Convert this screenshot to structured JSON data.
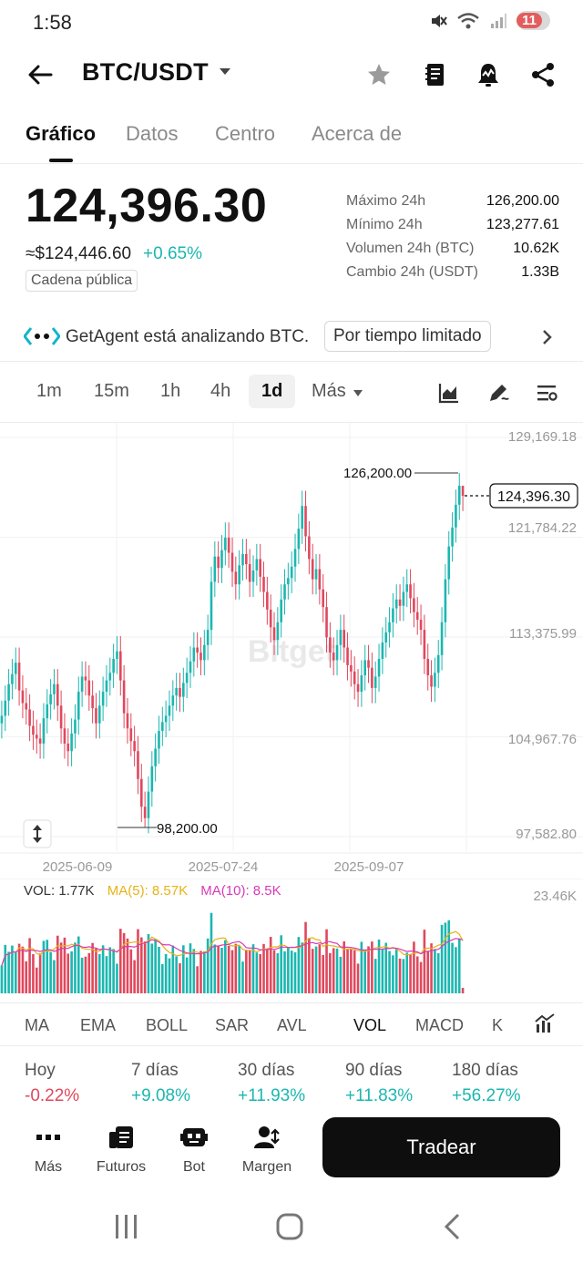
{
  "status_bar": {
    "time": "1:58",
    "battery": "11"
  },
  "header": {
    "pair": "BTC/USDT"
  },
  "tabs": [
    {
      "label": "Gráfico"
    },
    {
      "label": "Datos"
    },
    {
      "label": "Centro"
    },
    {
      "label": "Acerca de"
    }
  ],
  "ticker": {
    "price": "124,396.30",
    "usd_equiv": "≈$124,446.60",
    "change_pct": "+0.65%",
    "badge": "Cadena pública",
    "stats": [
      {
        "label": "Máximo 24h",
        "value": "126,200.00"
      },
      {
        "label": "Mínimo 24h",
        "value": "123,277.61"
      },
      {
        "label": "Volumen 24h (BTC)",
        "value": "10.62K"
      },
      {
        "label": "Cambio 24h (USDT)",
        "value": "1.33B"
      }
    ]
  },
  "banner": {
    "text": "GetAgent está analizando BTC.",
    "pill": "Por tiempo limitado"
  },
  "timeframes": [
    "1m",
    "15m",
    "1h",
    "4h",
    "1d",
    "Más"
  ],
  "chart": {
    "y_ticks": [
      "129,169.18",
      "121,784.22",
      "113,375.99",
      "104,967.76",
      "97,582.80"
    ],
    "x_ticks": [
      "2025-06-09",
      "2025-07-24",
      "2025-09-07"
    ],
    "high_label": "126,200.00",
    "low_label": "98,200.00",
    "last_price_label": "124,396.30",
    "watermark": "Bitget"
  },
  "volume": {
    "vol_label": "VOL: 1.77K",
    "ma5_label": "MA(5): 8.57K",
    "ma10_label": "MA(10): 8.5K",
    "max_tick": "23.46K"
  },
  "indicators": [
    "MA",
    "EMA",
    "BOLL",
    "SAR",
    "AVL",
    "VOL",
    "MACD",
    "K"
  ],
  "performance": [
    {
      "label": "Hoy",
      "value": "-0.22%"
    },
    {
      "label": "7 días",
      "value": "+9.08%"
    },
    {
      "label": "30 días",
      "value": "+11.93%"
    },
    {
      "label": "90 días",
      "value": "+11.83%"
    },
    {
      "label": "180 días",
      "value": "+56.27%"
    }
  ],
  "actions": [
    {
      "label": "Más"
    },
    {
      "label": "Futuros"
    },
    {
      "label": "Bot"
    },
    {
      "label": "Margen"
    }
  ],
  "trade_button": "Tradear",
  "chart_data": {
    "type": "candlestick",
    "y_range": [
      97582.8,
      129169.18
    ],
    "x_ticks": [
      "2025-06-09",
      "2025-07-24",
      "2025-09-07"
    ],
    "high": 126200.0,
    "low": 98200.0,
    "last": 124396.3,
    "closes": [
      107000,
      108200,
      109500,
      110300,
      111200,
      109000,
      108000,
      107500,
      106200,
      105500,
      105200,
      104800,
      106800,
      107900,
      108700,
      109500,
      107800,
      106000,
      104800,
      104200,
      105600,
      106700,
      108900,
      110100,
      109800,
      108600,
      107600,
      106400,
      107800,
      108900,
      109800,
      110400,
      111500,
      112100,
      109800,
      107200,
      106000,
      105000,
      104200,
      102000,
      99800,
      98900,
      101000,
      103000,
      104400,
      105800,
      106500,
      107000,
      107800,
      108600,
      109200,
      108500,
      109600,
      110400,
      111300,
      112400,
      112000,
      111400,
      112600,
      113800,
      117600,
      119600,
      118700,
      120100,
      121100,
      119900,
      118400,
      117400,
      118900,
      119800,
      119000,
      117600,
      118500,
      119400,
      118000,
      116800,
      115400,
      114000,
      113000,
      114400,
      116200,
      117400,
      117900,
      118800,
      120200,
      121800,
      123600,
      121200,
      119400,
      117800,
      118600,
      117000,
      115600,
      113200,
      112000,
      111400,
      112600,
      113800,
      112400,
      111000,
      110500,
      109500,
      108900,
      110200,
      111400,
      110800,
      109200,
      110100,
      111500,
      112800,
      113600,
      114400,
      115500,
      116200,
      115700,
      116800,
      117400,
      116300,
      115200,
      114600,
      113800,
      111500,
      110200,
      109300,
      110400,
      111800,
      114400,
      117800,
      120400,
      121900,
      123700,
      125200,
      124396
    ]
  }
}
